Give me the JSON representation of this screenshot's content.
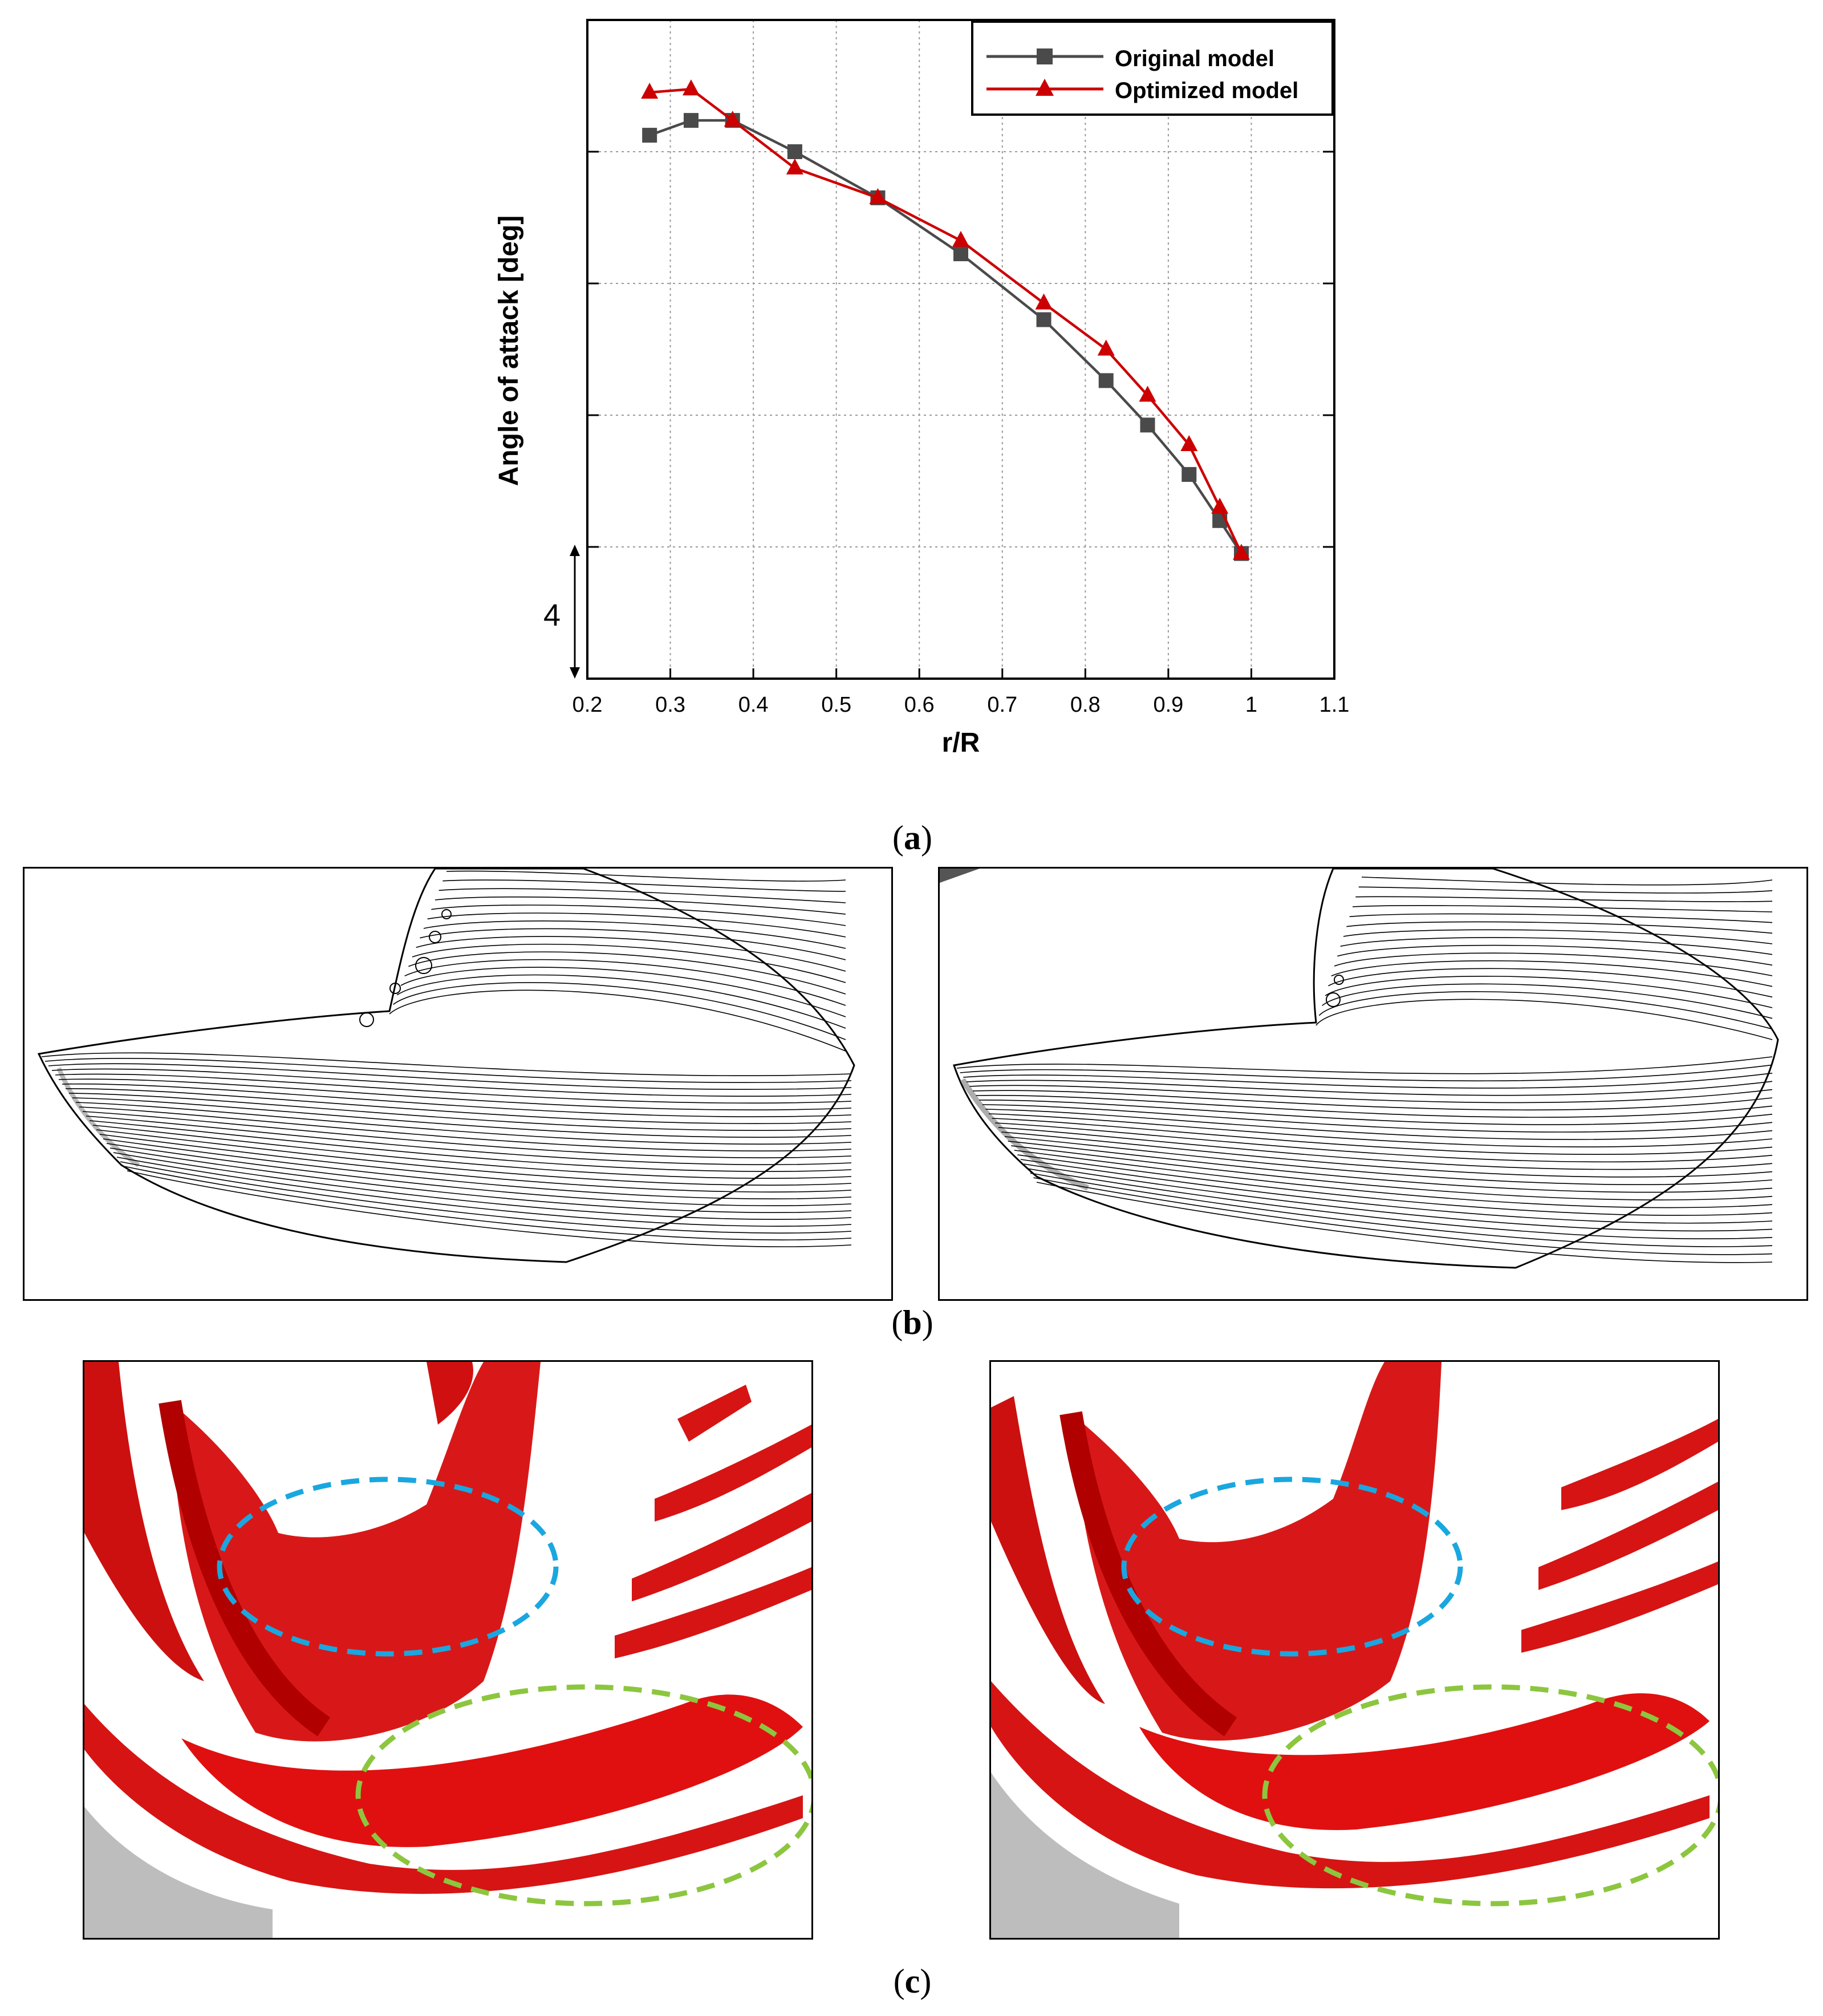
{
  "figure": {
    "panel_a": {
      "label_open": "(",
      "label_letter": "a",
      "label_close": ")"
    },
    "panel_b": {
      "label_open": "(",
      "label_letter": "b",
      "label_close": ")"
    },
    "panel_c": {
      "label_open": "(",
      "label_letter": "c",
      "label_close": ")"
    },
    "scale_bar_label": "4"
  },
  "chart_data": {
    "type": "line",
    "title": "",
    "xlabel": "r/R",
    "ylabel": "Angle of attack [deg]",
    "xlim": [
      0.2,
      1.1
    ],
    "ylim": [
      -4,
      16
    ],
    "x_ticks": [
      "0.2",
      "0.3",
      "0.4",
      "0.5",
      "0.6",
      "0.7",
      "0.8",
      "0.9",
      "1",
      "1.1"
    ],
    "y_gridlines": [
      0,
      4,
      8,
      12
    ],
    "grid": true,
    "legend_position": "top-right",
    "series": [
      {
        "name": "Original model",
        "color": "#4a4a4a",
        "marker": "square",
        "x": [
          0.275,
          0.325,
          0.375,
          0.45,
          0.55,
          0.65,
          0.75,
          0.825,
          0.875,
          0.925,
          0.962,
          0.988
        ],
        "y": [
          12.5,
          12.95,
          12.95,
          12.0,
          10.6,
          8.9,
          6.9,
          5.05,
          3.7,
          2.2,
          0.8,
          -0.2
        ]
      },
      {
        "name": "Optimized model",
        "color": "#cc0000",
        "marker": "triangle",
        "x": [
          0.275,
          0.325,
          0.375,
          0.45,
          0.55,
          0.65,
          0.75,
          0.825,
          0.875,
          0.925,
          0.962,
          0.988
        ],
        "y": [
          13.8,
          13.9,
          12.95,
          11.5,
          10.6,
          9.3,
          7.4,
          6.0,
          4.6,
          3.1,
          1.2,
          -0.2
        ]
      }
    ]
  },
  "colors": {
    "vortex_red": "#e01010",
    "blue_ellipse": "#1aa7e0",
    "green_ellipse": "#8cc63f"
  }
}
